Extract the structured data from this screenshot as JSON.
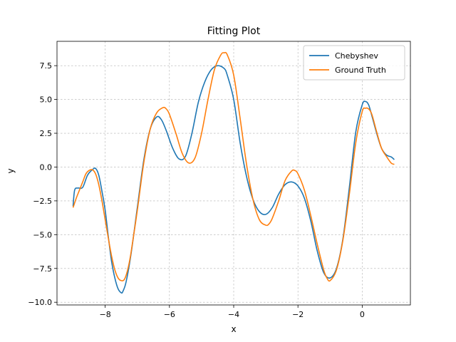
{
  "chart_data": {
    "type": "line",
    "title": "Fitting Plot",
    "xlabel": "x",
    "ylabel": "y",
    "xlim": [
      -9.5,
      1.5
    ],
    "ylim": [
      -10.2,
      9.3
    ],
    "xticks": [
      -8,
      -6,
      -4,
      -2,
      0
    ],
    "xtick_labels": [
      "−8",
      "−6",
      "−4",
      "−2",
      "0"
    ],
    "yticks": [
      -10.0,
      -7.5,
      -5.0,
      -2.5,
      0.0,
      2.5,
      5.0,
      7.5
    ],
    "ytick_labels": [
      "−10.0",
      "−7.5",
      "−5.0",
      "−2.5",
      "0.0",
      "2.5",
      "5.0",
      "7.5"
    ],
    "grid": true,
    "legend_position": "top-right",
    "series": [
      {
        "name": "Chebyshev",
        "color": "#1f77b4",
        "x": [
          -9.0,
          -8.95,
          -8.85,
          -8.7,
          -8.55,
          -8.4,
          -8.3,
          -8.2,
          -8.1,
          -8.0,
          -7.9,
          -7.8,
          -7.7,
          -7.6,
          -7.5,
          -7.45,
          -7.35,
          -7.2,
          -7.0,
          -6.8,
          -6.6,
          -6.4,
          -6.25,
          -6.1,
          -5.9,
          -5.7,
          -5.5,
          -5.3,
          -5.1,
          -4.9,
          -4.7,
          -4.5,
          -4.3,
          -4.2,
          -4.0,
          -3.8,
          -3.6,
          -3.4,
          -3.2,
          -3.0,
          -2.8,
          -2.6,
          -2.4,
          -2.2,
          -2.0,
          -1.8,
          -1.6,
          -1.4,
          -1.2,
          -1.0,
          -0.8,
          -0.6,
          -0.4,
          -0.2,
          0.0,
          0.1,
          0.2,
          0.3,
          0.45,
          0.6,
          0.75,
          0.9,
          1.0
        ],
        "y": [
          -2.9,
          -1.7,
          -1.55,
          -1.5,
          -0.6,
          -0.2,
          -0.1,
          -0.6,
          -1.8,
          -3.2,
          -5.2,
          -7.0,
          -8.2,
          -9.0,
          -9.3,
          -9.2,
          -8.5,
          -6.5,
          -3.0,
          0.5,
          2.8,
          3.7,
          3.5,
          2.7,
          1.4,
          0.6,
          0.8,
          2.5,
          4.8,
          6.3,
          7.2,
          7.5,
          7.3,
          6.8,
          5.0,
          1.8,
          -0.7,
          -2.4,
          -3.3,
          -3.5,
          -3.0,
          -2.0,
          -1.3,
          -1.1,
          -1.4,
          -2.3,
          -4.0,
          -6.2,
          -7.8,
          -8.2,
          -7.5,
          -5.3,
          -1.5,
          2.6,
          4.6,
          4.85,
          4.6,
          3.8,
          2.5,
          1.4,
          0.9,
          0.75,
          0.55
        ]
      },
      {
        "name": "Ground Truth",
        "color": "#ff7f0e",
        "x": [
          -9.0,
          -8.9,
          -8.8,
          -8.7,
          -8.6,
          -8.5,
          -8.4,
          -8.3,
          -8.2,
          -8.1,
          -8.0,
          -7.9,
          -7.8,
          -7.7,
          -7.6,
          -7.5,
          -7.4,
          -7.3,
          -7.2,
          -7.0,
          -6.8,
          -6.6,
          -6.4,
          -6.2,
          -6.1,
          -6.0,
          -5.8,
          -5.6,
          -5.4,
          -5.2,
          -5.0,
          -4.8,
          -4.6,
          -4.4,
          -4.3,
          -4.2,
          -4.0,
          -3.8,
          -3.6,
          -3.4,
          -3.2,
          -3.0,
          -2.9,
          -2.8,
          -2.6,
          -2.4,
          -2.2,
          -2.1,
          -2.0,
          -1.8,
          -1.6,
          -1.4,
          -1.2,
          -1.1,
          -1.0,
          -0.8,
          -0.6,
          -0.4,
          -0.2,
          0.0,
          0.1,
          0.2,
          0.3,
          0.45,
          0.6,
          0.75,
          0.9,
          1.0
        ],
        "y": [
          -3.0,
          -2.3,
          -1.7,
          -1.1,
          -0.5,
          -0.25,
          -0.2,
          -0.5,
          -1.3,
          -2.5,
          -3.9,
          -5.3,
          -6.6,
          -7.6,
          -8.2,
          -8.4,
          -8.3,
          -7.6,
          -6.4,
          -3.2,
          0.3,
          2.8,
          4.0,
          4.4,
          4.3,
          3.9,
          2.5,
          1.0,
          0.3,
          0.7,
          2.5,
          5.0,
          7.2,
          8.3,
          8.45,
          8.3,
          6.8,
          3.6,
          0.2,
          -2.4,
          -3.9,
          -4.3,
          -4.2,
          -3.8,
          -2.5,
          -1.0,
          -0.3,
          -0.25,
          -0.5,
          -1.7,
          -3.6,
          -5.7,
          -7.6,
          -8.2,
          -8.4,
          -7.6,
          -5.4,
          -2.0,
          1.8,
          4.1,
          4.35,
          4.3,
          3.9,
          2.6,
          1.4,
          0.8,
          0.3,
          0.2
        ]
      }
    ]
  }
}
